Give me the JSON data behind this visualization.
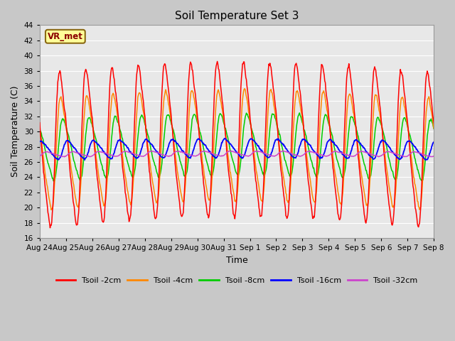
{
  "title": "Soil Temperature Set 3",
  "xlabel": "Time",
  "ylabel": "Soil Temperature (C)",
  "ylim": [
    16,
    44
  ],
  "yticks": [
    16,
    18,
    20,
    22,
    24,
    26,
    28,
    30,
    32,
    34,
    36,
    38,
    40,
    42,
    44
  ],
  "xtick_labels": [
    "Aug 24",
    "Aug 25",
    "Aug 26",
    "Aug 27",
    "Aug 28",
    "Aug 29",
    "Aug 30",
    "Aug 31",
    "Sep 1",
    "Sep 2",
    "Sep 3",
    "Sep 4",
    "Sep 5",
    "Sep 6",
    "Sep 7",
    "Sep 8"
  ],
  "annotation": "VR_met",
  "colors": {
    "Tsoil -2cm": "#ff0000",
    "Tsoil -4cm": "#ff8800",
    "Tsoil -8cm": "#00cc00",
    "Tsoil -16cm": "#0000ff",
    "Tsoil -32cm": "#cc44cc"
  },
  "bg_color": "#e8e8e8",
  "grid_color": "#ffffff",
  "fig_bg_color": "#c8c8c8",
  "figsize": [
    6.4,
    4.8
  ],
  "dpi": 100,
  "n_days": 15,
  "base_temp": 27.0,
  "amp_2": 12.5,
  "amp_4": 9.0,
  "amp_8": 5.0,
  "amp_16": 1.5,
  "amp_32": 0.4,
  "lag_4_hours": 1.0,
  "lag_8_hours": 3.0,
  "lag_16_hours": 7.0,
  "lag_32_hours": 12.0,
  "peak_hour": 14.0
}
